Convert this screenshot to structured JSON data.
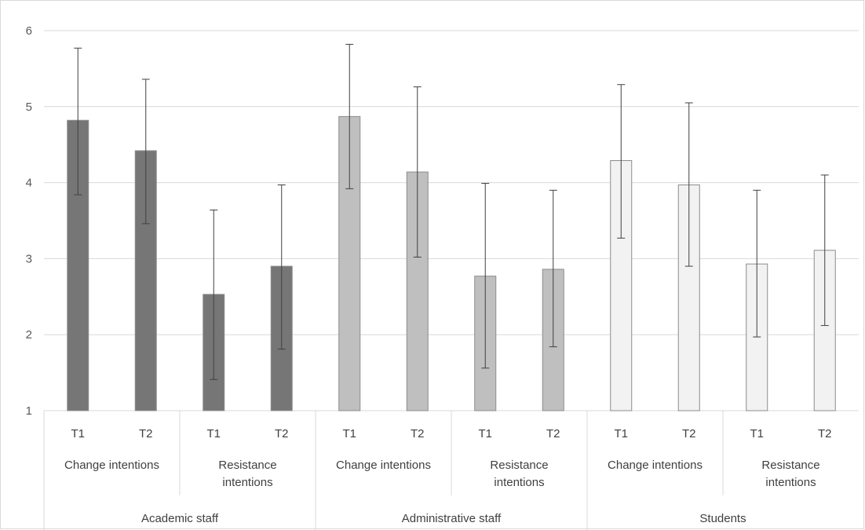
{
  "chart_data": {
    "type": "bar",
    "title": "",
    "xlabel": "",
    "ylabel": "",
    "ylim": [
      1,
      6
    ],
    "yticks": [
      "1",
      "2",
      "3",
      "4",
      "5",
      "6"
    ],
    "grid": true,
    "legend": "none",
    "groups": [
      {
        "name": "Academic staff",
        "color": "#767676",
        "subgroups": [
          {
            "name": "Change intentions",
            "lines": [
              "Change intentions"
            ],
            "bars": [
              {
                "label": "T1",
                "value": 4.82,
                "err_low": 3.84,
                "err_high": 5.77
              },
              {
                "label": "T2",
                "value": 4.42,
                "err_low": 3.46,
                "err_high": 5.36
              }
            ]
          },
          {
            "name": "Resistance intentions",
            "lines": [
              "Resistance",
              "intentions"
            ],
            "bars": [
              {
                "label": "T1",
                "value": 2.53,
                "err_low": 1.41,
                "err_high": 3.64
              },
              {
                "label": "T2",
                "value": 2.9,
                "err_low": 1.81,
                "err_high": 3.97
              }
            ]
          }
        ]
      },
      {
        "name": "Administrative staff",
        "color": "#bfbfbf",
        "subgroups": [
          {
            "name": "Change intentions",
            "lines": [
              "Change intentions"
            ],
            "bars": [
              {
                "label": "T1",
                "value": 4.87,
                "err_low": 3.92,
                "err_high": 5.82
              },
              {
                "label": "T2",
                "value": 4.14,
                "err_low": 3.02,
                "err_high": 5.26
              }
            ]
          },
          {
            "name": "Resistance intentions",
            "lines": [
              "Resistance",
              "intentions"
            ],
            "bars": [
              {
                "label": "T1",
                "value": 2.77,
                "err_low": 1.56,
                "err_high": 3.99
              },
              {
                "label": "T2",
                "value": 2.86,
                "err_low": 1.84,
                "err_high": 3.9
              }
            ]
          }
        ]
      },
      {
        "name": "Students",
        "color": "#f2f2f2",
        "subgroups": [
          {
            "name": "Change intentions",
            "lines": [
              "Change intentions"
            ],
            "bars": [
              {
                "label": "T1",
                "value": 4.29,
                "err_low": 3.27,
                "err_high": 5.29
              },
              {
                "label": "T2",
                "value": 3.97,
                "err_low": 2.9,
                "err_high": 5.05
              }
            ]
          },
          {
            "name": "Resistance intentions",
            "lines": [
              "Resistance",
              "intentions"
            ],
            "bars": [
              {
                "label": "T1",
                "value": 2.93,
                "err_low": 1.97,
                "err_high": 3.9
              },
              {
                "label": "T2",
                "value": 3.11,
                "err_low": 2.12,
                "err_high": 4.1
              }
            ]
          }
        ]
      }
    ]
  }
}
